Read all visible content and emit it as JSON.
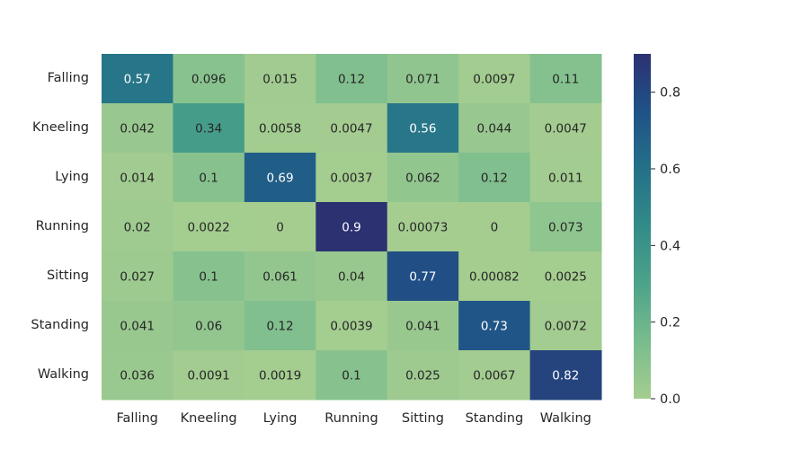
{
  "chart_data": {
    "type": "heatmap",
    "title": "",
    "xlabel": "",
    "ylabel": "",
    "x_categories": [
      "Falling",
      "Kneeling",
      "Lying",
      "Running",
      "Sitting",
      "Standing",
      "Walking"
    ],
    "y_categories": [
      "Falling",
      "Kneeling",
      "Lying",
      "Running",
      "Sitting",
      "Standing",
      "Walking"
    ],
    "values": [
      [
        0.57,
        0.096,
        0.015,
        0.12,
        0.071,
        0.0097,
        0.11
      ],
      [
        0.042,
        0.34,
        0.0058,
        0.0047,
        0.56,
        0.044,
        0.0047
      ],
      [
        0.014,
        0.1,
        0.69,
        0.0037,
        0.062,
        0.12,
        0.011
      ],
      [
        0.02,
        0.0022,
        0,
        0.9,
        0.00073,
        0,
        0.073
      ],
      [
        0.027,
        0.1,
        0.061,
        0.04,
        0.77,
        0.00082,
        0.0025
      ],
      [
        0.041,
        0.06,
        0.12,
        0.0039,
        0.041,
        0.73,
        0.0072
      ],
      [
        0.036,
        0.0091,
        0.0019,
        0.1,
        0.025,
        0.0067,
        0.82
      ]
    ],
    "colorbar": {
      "vmin": 0,
      "vmax": 0.9,
      "ticks": [
        0.0,
        0.2,
        0.4,
        0.6,
        0.8
      ],
      "tick_labels": [
        "0.0",
        "0.2",
        "0.4",
        "0.6",
        "0.8"
      ]
    },
    "colormap": {
      "name": "crest",
      "stops": [
        "#a5cd90",
        "#78bc8d",
        "#4ca38a",
        "#328b88",
        "#247088",
        "#1f5287",
        "#2c3172"
      ]
    },
    "annotations": true
  }
}
